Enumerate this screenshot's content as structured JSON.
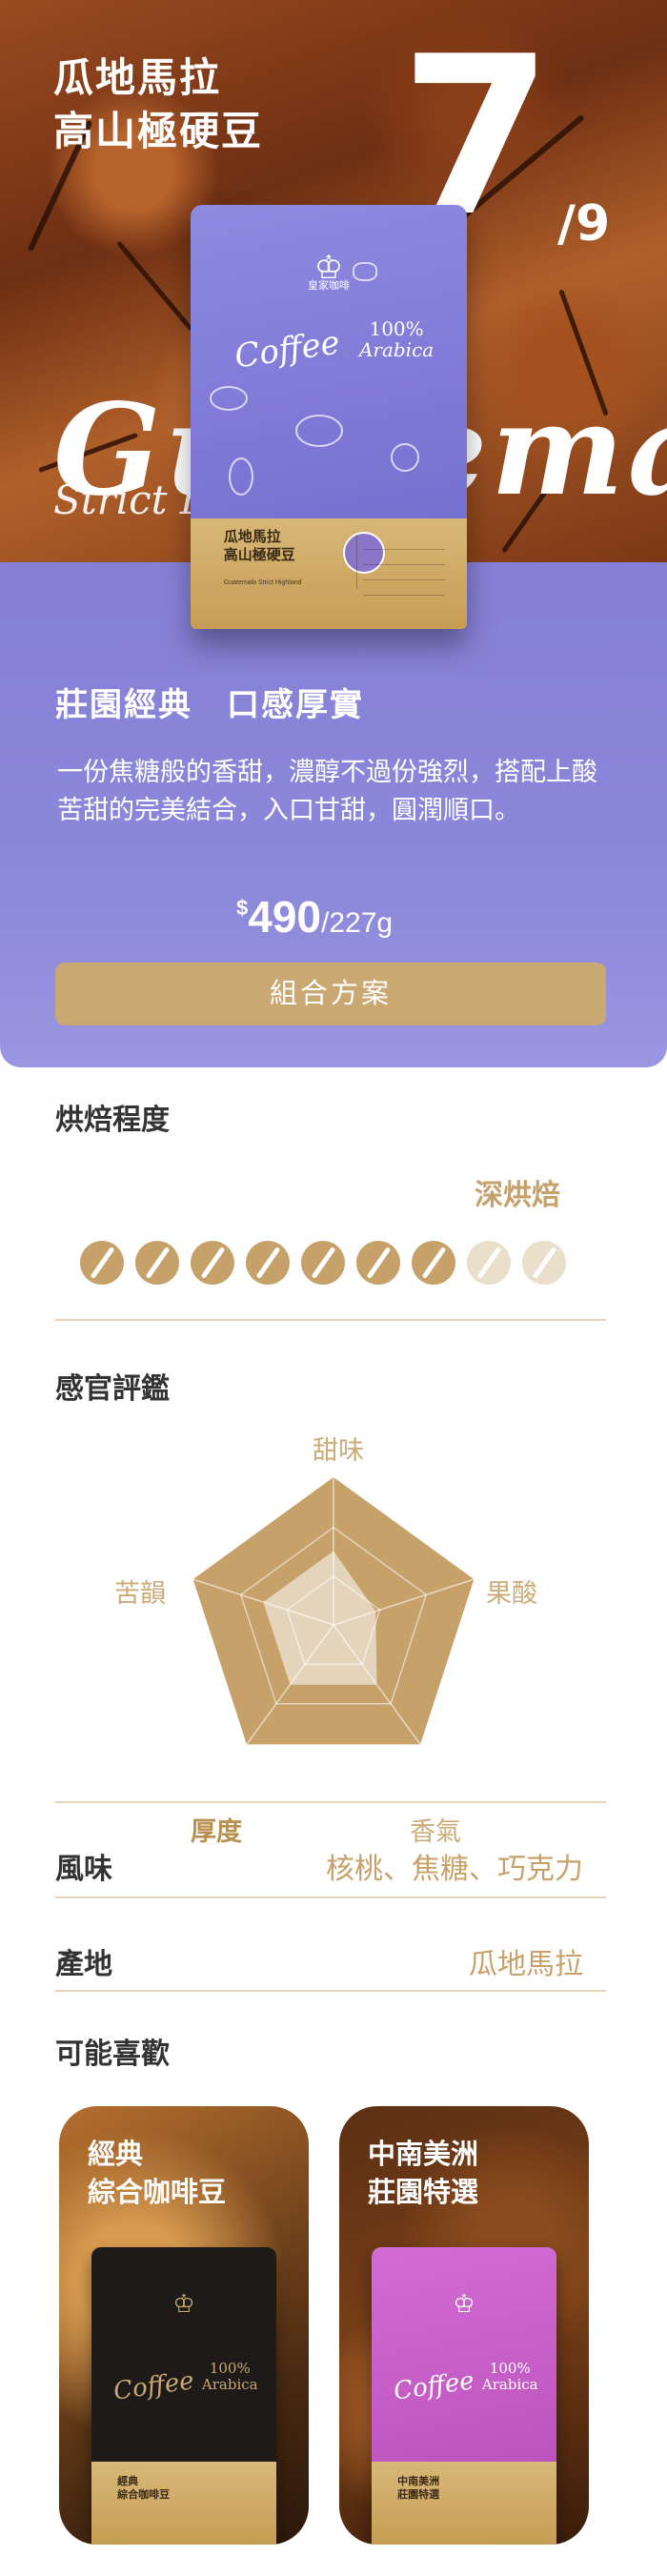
{
  "hero": {
    "origin_line1": "瓜地馬拉",
    "origin_line2": "高山極硬豆",
    "index_number": "7",
    "index_total": "/9",
    "watermark": "Guatemala",
    "watermark_sub": "Strict H",
    "bag": {
      "brand": "皇家咖啡",
      "coffee_script": "Coffee",
      "arabica": [
        "100%",
        "Arabica"
      ],
      "label_line1": "瓜地馬拉",
      "label_line2": "高山極硬豆",
      "label_small": "Guatemala Strict Highland",
      "color": "#7d78d6"
    }
  },
  "product": {
    "tagline": "莊園經典　口感厚實",
    "description": "一份焦糖般的香甜，濃醇不過份強烈，搭配上酸苦甜的完美結合，入口甘甜，圓潤順口。",
    "price_currency": "$",
    "price_amount": "490",
    "price_unit": "/227g",
    "combo_button": "組合方案"
  },
  "roast": {
    "title": "烘焙程度",
    "level_label": "深烘焙",
    "filled": 7,
    "total": 9
  },
  "sensory": {
    "title": "感官評鑑",
    "axes": [
      {
        "label": "甜味",
        "value": 0.5
      },
      {
        "label": "果酸",
        "value": 0.3
      },
      {
        "label": "香氣",
        "value": 0.5
      },
      {
        "label": "厚度",
        "value": 0.5
      },
      {
        "label": "苦韻",
        "value": 0.5
      }
    ],
    "highlight": "厚度"
  },
  "flavor": {
    "label": "風味",
    "value": "核桃、焦糖、巧克力"
  },
  "origin": {
    "label": "產地",
    "value": "瓜地馬拉"
  },
  "recommend": {
    "title": "可能喜歡",
    "items": [
      {
        "line1": "經典",
        "line2": "綜合咖啡豆",
        "bag_color": "#1d1a19",
        "accent": "#c9a872"
      },
      {
        "line1": "中南美洲",
        "line2": "莊園特選",
        "bag_color": "#c55fc6",
        "accent": "#ffffff"
      }
    ]
  },
  "colors": {
    "purple": "#8580d6",
    "gold": "#c6a16a",
    "button": "#c9a872",
    "rule": "#e4d4ba"
  }
}
